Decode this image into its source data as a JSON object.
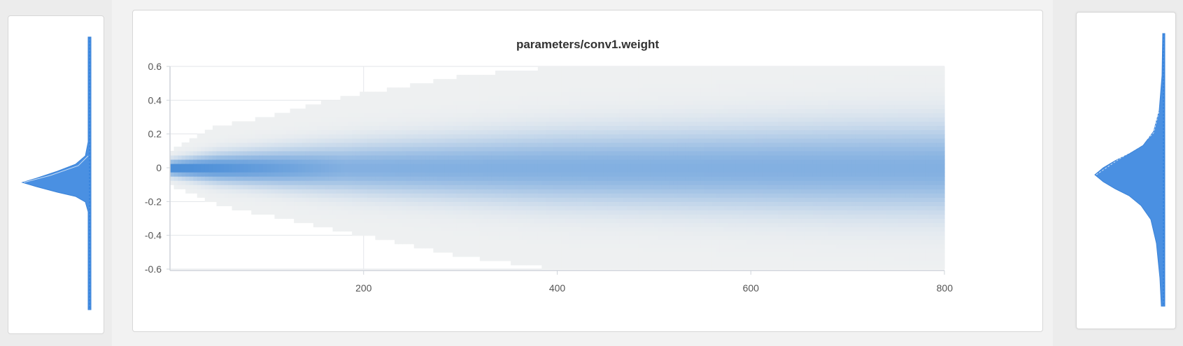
{
  "chart_data": {
    "type": "heatmap",
    "title": "parameters/conv1.weight",
    "xlabel": "",
    "ylabel": "",
    "xlim": [
      0,
      800
    ],
    "ylim": [
      -0.6,
      0.6
    ],
    "x_ticks": [
      "200",
      "400",
      "600",
      "800"
    ],
    "y_ticks": [
      "0.6",
      "0.4",
      "0.2",
      "0",
      "-0.2",
      "-0.4",
      "-0.6"
    ],
    "grid": true,
    "colors": {
      "low": "#eef0f1",
      "high": "#2b7bd3",
      "grid": "#e3e6ea"
    },
    "steps": [
      0,
      50,
      100,
      150,
      200,
      250,
      300,
      350,
      400,
      450,
      500,
      600,
      700,
      800
    ],
    "weight_range_max": [
      0.1,
      0.25,
      0.3,
      0.38,
      0.44,
      0.49,
      0.54,
      0.57,
      0.6,
      0.6,
      0.6,
      0.6,
      0.6,
      0.6
    ],
    "weight_range_min": [
      -0.1,
      -0.22,
      -0.28,
      -0.34,
      -0.4,
      -0.46,
      -0.52,
      -0.56,
      -0.6,
      -0.6,
      -0.6,
      -0.6,
      -0.6,
      -0.6
    ],
    "std": [
      0.03,
      0.055,
      0.07,
      0.085,
      0.1,
      0.11,
      0.12,
      0.13,
      0.14,
      0.145,
      0.15,
      0.16,
      0.17,
      0.175
    ]
  }
}
